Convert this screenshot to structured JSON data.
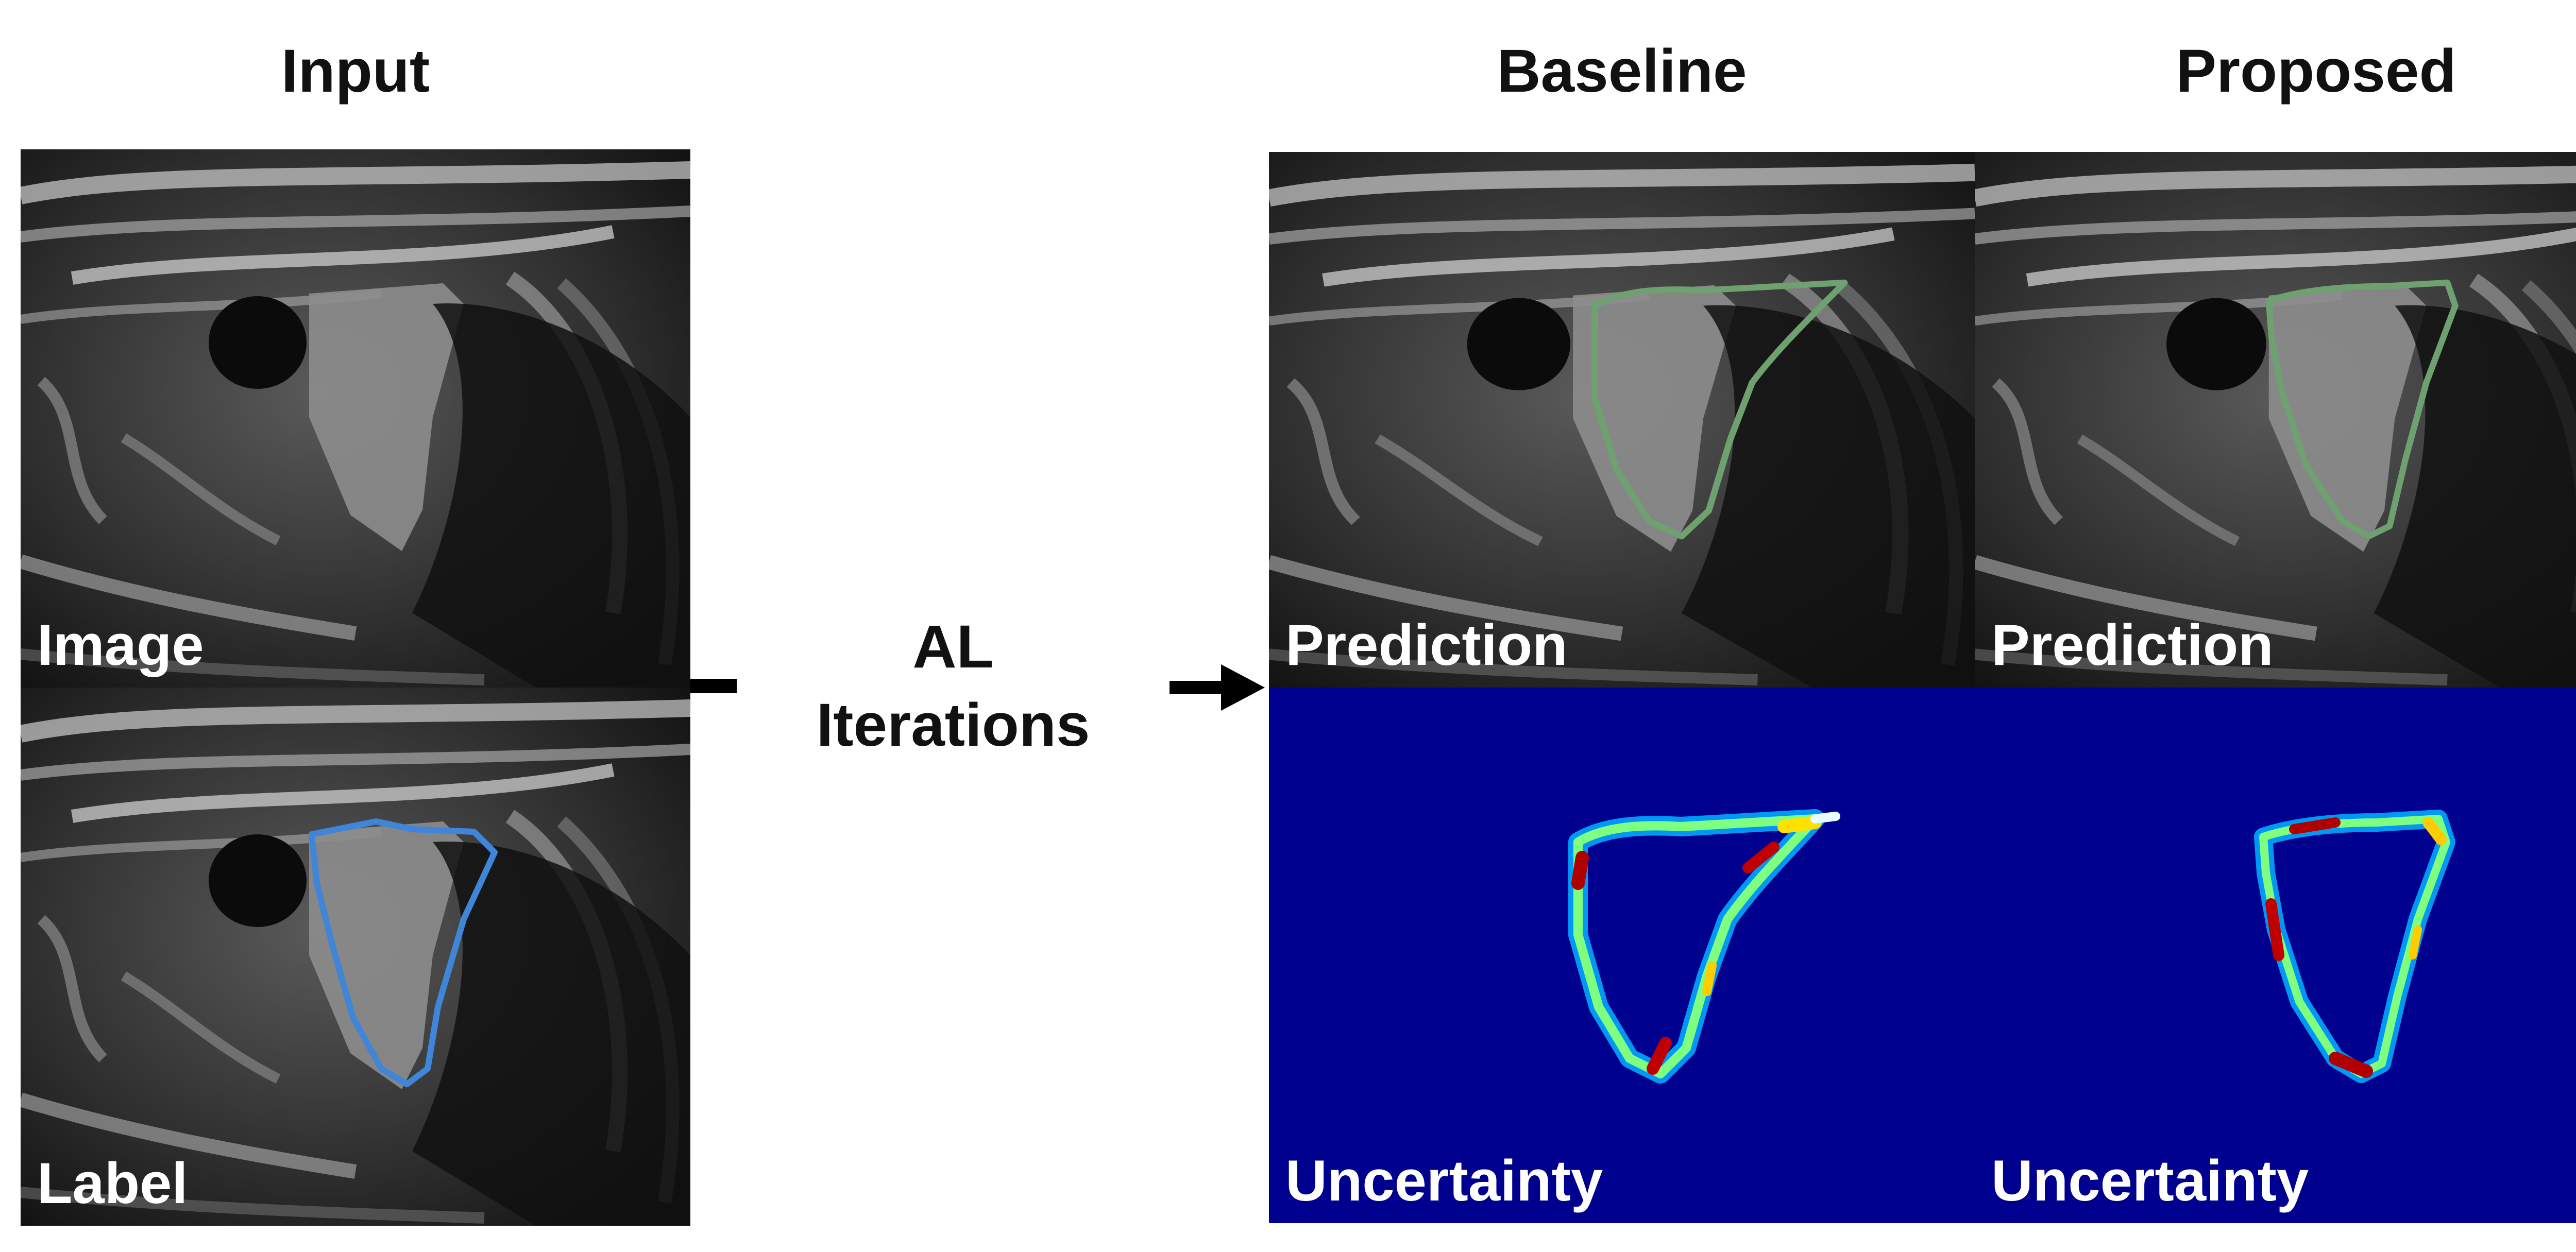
{
  "headers": {
    "input": "Input",
    "baseline": "Baseline",
    "proposed": "Proposed"
  },
  "process": {
    "line1": "AL",
    "line2": "Iterations"
  },
  "panels": {
    "input_image": "Image",
    "input_label": "Label",
    "baseline_prediction": "Prediction",
    "baseline_uncertainty": "Uncertainty",
    "proposed_prediction": "Prediction",
    "proposed_uncertainty": "Uncertainty"
  },
  "colors": {
    "label_contour": "#3f86d8",
    "prediction_contour": "#6fa070",
    "uncertainty_background": "#00008f",
    "arrow": "#000000"
  }
}
